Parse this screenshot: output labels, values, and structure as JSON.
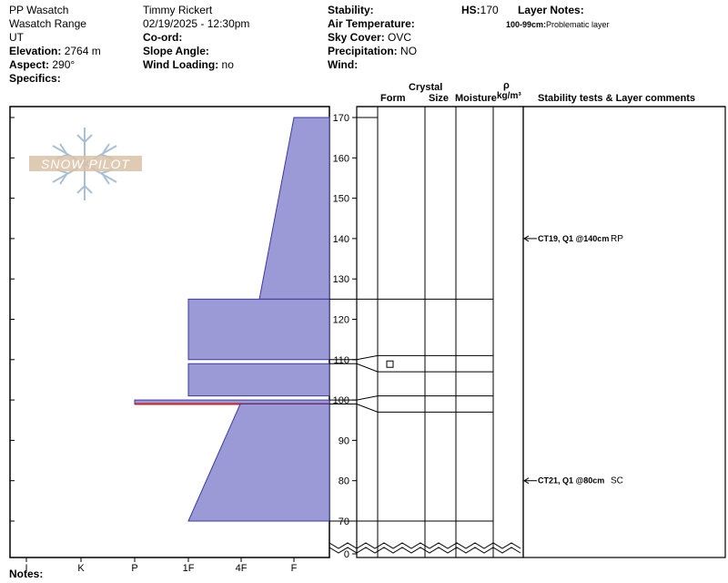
{
  "header": {
    "location": "PP Wasatch",
    "range": "Wasatch Range",
    "state": "UT",
    "elevation_label": "Elevation:",
    "elevation": "2764 m",
    "aspect_label": "Aspect:",
    "aspect": "290°",
    "specifics_label": "Specifics:",
    "observer": "Timmy  Rickert",
    "datetime": "02/19/2025 - 12:30pm",
    "coord_label": "Co-ord:",
    "slope_label": "Slope Angle:",
    "wind_loading_label": "Wind Loading:",
    "wind_loading": "no",
    "stability_label": "Stability:",
    "air_temp_label": "Air Temperature:",
    "sky_label": "Sky Cover:",
    "sky": "OVC",
    "precip_label": "Precipitation:",
    "precip": "NO",
    "wind_label": "Wind:",
    "hs_label": "HS:",
    "hs": "170",
    "layer_notes_label": "Layer Notes:",
    "layer_note_range": "100-99cm:",
    "layer_note_text": "Problematic layer"
  },
  "columns": {
    "crystal": "Crystal",
    "form": "Form",
    "size": "Size",
    "moisture": "Moisture",
    "rho": "ρ",
    "density_unit": "kg/m³",
    "comments": "Stability tests & Layer comments"
  },
  "footer": {
    "notes_label": "Notes:"
  },
  "watermark": "SNOW PILOT",
  "colors": {
    "layer_fill": "#9b99d6",
    "layer_stroke": "#3a3aa0",
    "weak_layer": "#cc1f1f"
  },
  "chart_data": {
    "type": "snow-profile",
    "height_axis": {
      "min": 0,
      "max": 170,
      "ticks": [
        0,
        70,
        80,
        90,
        100,
        110,
        120,
        130,
        140,
        150,
        160,
        170
      ]
    },
    "hardness_axis": [
      "I",
      "K",
      "P",
      "1F",
      "4F",
      "F"
    ],
    "hardness_layers": [
      {
        "top": 170,
        "bottom": 125,
        "hardness_top": "F",
        "hardness_bottom": "4F+"
      },
      {
        "top": 125,
        "bottom": 110,
        "hardness": "1F"
      },
      {
        "top": 109,
        "bottom": 101,
        "hardness": "1F"
      },
      {
        "top": 100,
        "bottom": 99,
        "hardness": "P",
        "weak_layer": true
      },
      {
        "top": 99,
        "bottom": 70,
        "hardness_top": "4F-",
        "hardness_bottom": "1F"
      }
    ],
    "layer_boundaries": [
      125,
      111,
      107,
      101,
      97,
      70
    ],
    "grain_symbol": {
      "height": 109,
      "symbol": "square"
    },
    "stability_tests": [
      {
        "height": 140,
        "text": "CT19, Q1 @140cm",
        "fracture": "RP"
      },
      {
        "height": 80,
        "text": "CT21, Q1 @80cm",
        "fracture": "SC"
      }
    ]
  }
}
